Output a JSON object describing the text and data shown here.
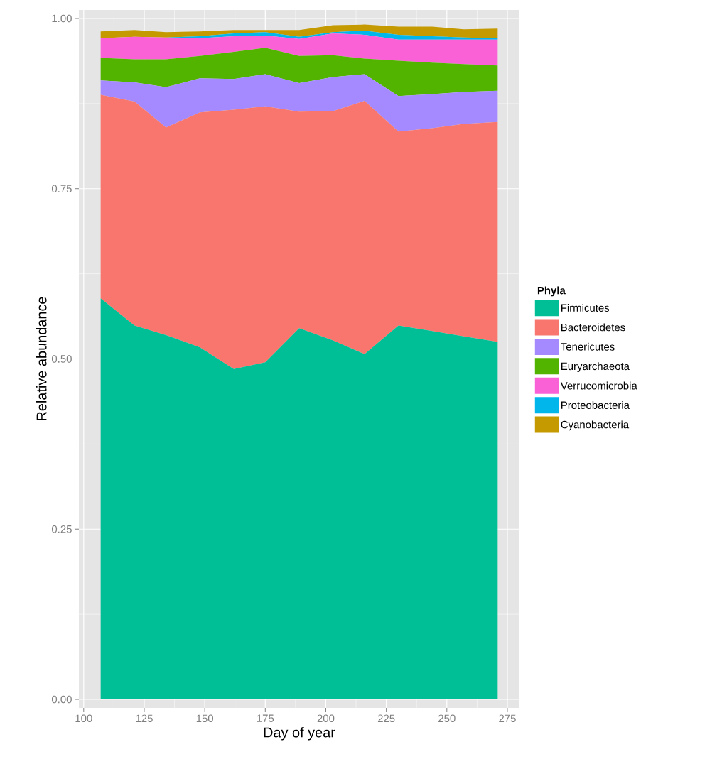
{
  "chart_data": {
    "type": "area",
    "stacked": true,
    "xlabel": "Day of year",
    "ylabel": "Relative abundance",
    "legend_title": "Phyla",
    "x": [
      107,
      121,
      134,
      148,
      162,
      175,
      189,
      203,
      216,
      230,
      244,
      257,
      271
    ],
    "series": [
      {
        "name": "Firmicutes",
        "color": "#00bf96",
        "values": [
          0.589,
          0.549,
          0.535,
          0.517,
          0.485,
          0.495,
          0.545,
          0.527,
          0.507,
          0.549,
          0.541,
          0.533,
          0.525
        ]
      },
      {
        "name": "Bacteroidetes",
        "color": "#f8766d",
        "values": [
          0.299,
          0.329,
          0.305,
          0.345,
          0.381,
          0.376,
          0.318,
          0.337,
          0.372,
          0.285,
          0.298,
          0.312,
          0.323
        ]
      },
      {
        "name": "Tenericutes",
        "color": "#a58aff",
        "values": [
          0.021,
          0.028,
          0.059,
          0.05,
          0.045,
          0.047,
          0.042,
          0.05,
          0.039,
          0.052,
          0.05,
          0.047,
          0.046
        ]
      },
      {
        "name": "Euryarchaeota",
        "color": "#53b400",
        "values": [
          0.033,
          0.034,
          0.041,
          0.033,
          0.04,
          0.039,
          0.04,
          0.032,
          0.023,
          0.052,
          0.046,
          0.041,
          0.037
        ]
      },
      {
        "name": "Verrucomicrobia",
        "color": "#fb61d7",
        "values": [
          0.029,
          0.033,
          0.032,
          0.026,
          0.023,
          0.018,
          0.025,
          0.032,
          0.035,
          0.031,
          0.034,
          0.036,
          0.038
        ]
      },
      {
        "name": "Proteobacteria",
        "color": "#00b6eb",
        "values": [
          0,
          0,
          0,
          0.003,
          0.004,
          0.005,
          0.003,
          0.002,
          0.006,
          0.007,
          0.005,
          0.003,
          0.002
        ]
      },
      {
        "name": "Cyanobacteria",
        "color": "#c49a00",
        "values": [
          0.01,
          0.01,
          0.008,
          0.007,
          0.005,
          0.003,
          0.01,
          0.01,
          0.009,
          0.012,
          0.014,
          0.012,
          0.014
        ]
      }
    ],
    "xlim": [
      98,
      280
    ],
    "ylim": [
      -0.0125,
      1.0125
    ],
    "xticks": [
      100,
      125,
      150,
      175,
      200,
      225,
      250,
      275
    ],
    "yticks": [
      {
        "value": 0,
        "label": "0.00"
      },
      {
        "value": 0.25,
        "label": "0.25"
      },
      {
        "value": 0.5,
        "label": "0.50"
      },
      {
        "value": 0.75,
        "label": "0.75"
      },
      {
        "value": 1,
        "label": "1.00"
      }
    ],
    "grid": true,
    "legend": "right"
  }
}
